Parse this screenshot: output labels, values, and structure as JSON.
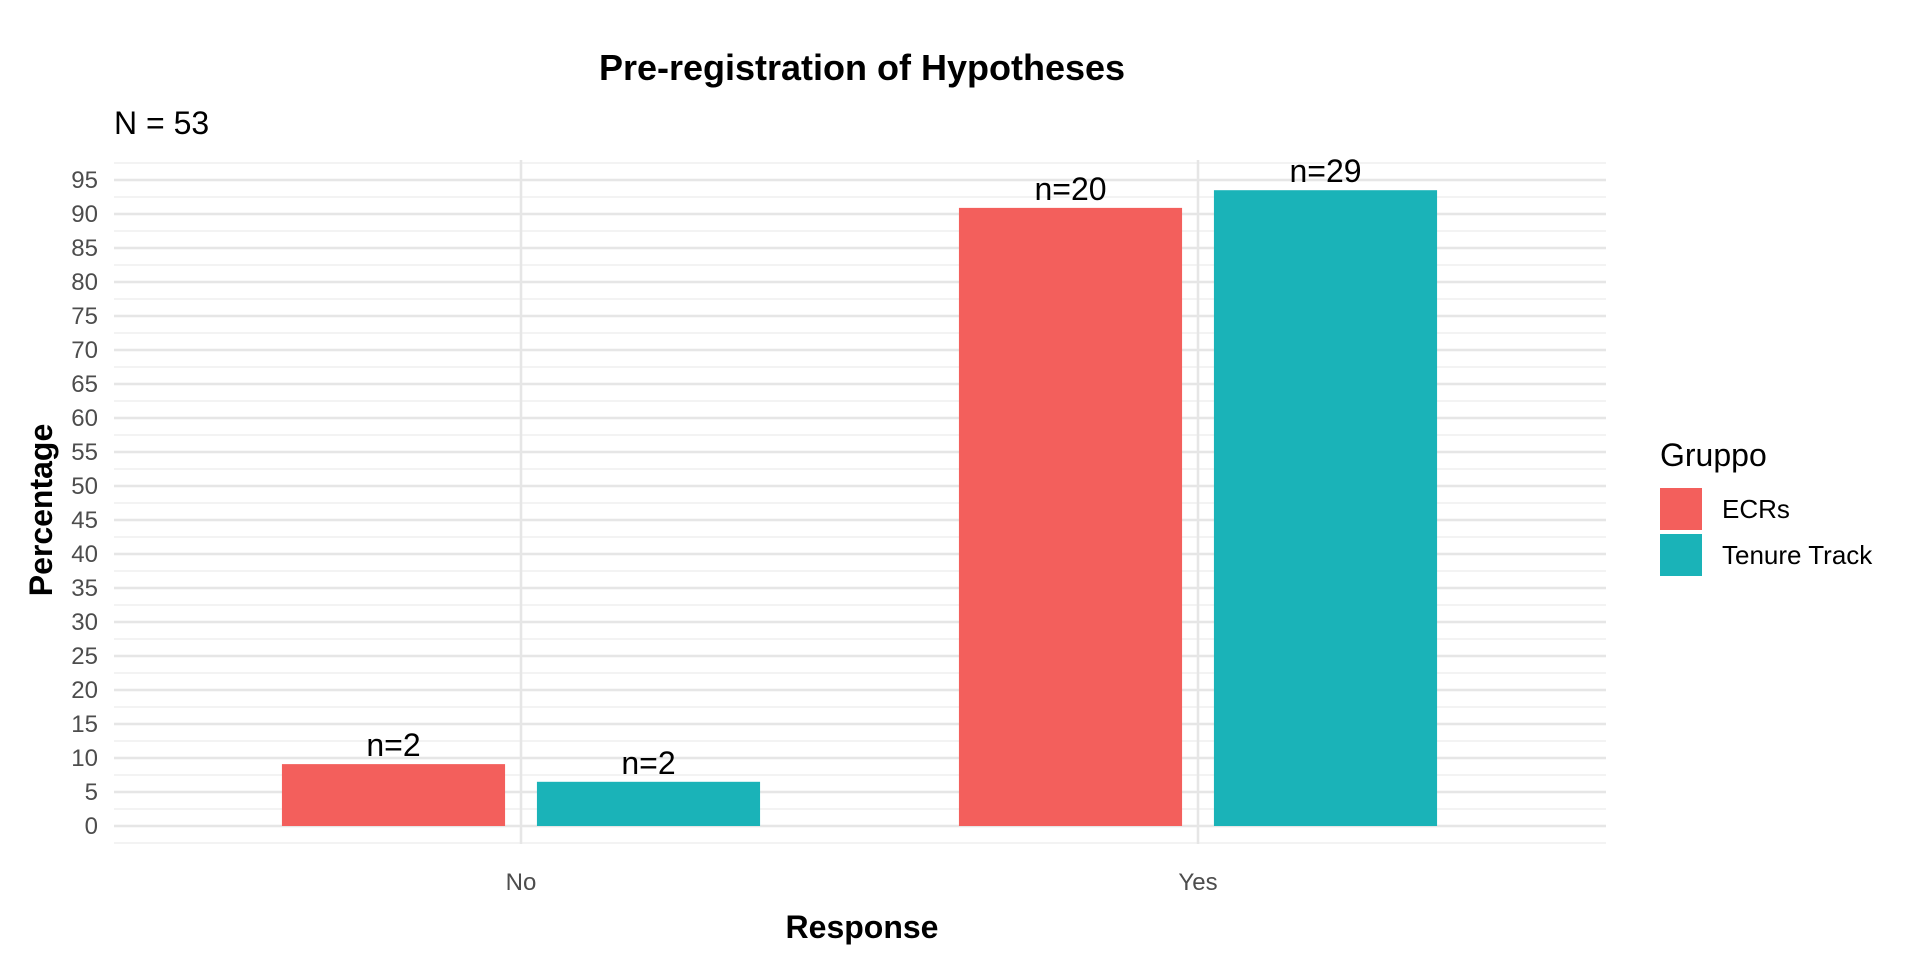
{
  "chart_data": {
    "type": "bar",
    "title": "Pre-registration of Hypotheses",
    "subtitle": "N = 53",
    "xlabel": "Response",
    "ylabel": "Percentage",
    "categories": [
      "No",
      "Yes"
    ],
    "series": [
      {
        "name": "ECRs",
        "color": "#F35F5C",
        "values": [
          9.1,
          90.9
        ],
        "labels": [
          "n=2",
          "n=20"
        ]
      },
      {
        "name": "Tenure Track",
        "color": "#1AB3B8",
        "values": [
          6.5,
          93.5
        ],
        "labels": [
          "n=2",
          "n=29"
        ]
      }
    ],
    "ylim": [
      0,
      95
    ],
    "yticks": [
      0,
      5,
      10,
      15,
      20,
      25,
      30,
      35,
      40,
      45,
      50,
      55,
      60,
      65,
      70,
      75,
      80,
      85,
      90,
      95
    ],
    "grid": true,
    "legend": {
      "title": "Gruppo",
      "position": "right"
    }
  }
}
